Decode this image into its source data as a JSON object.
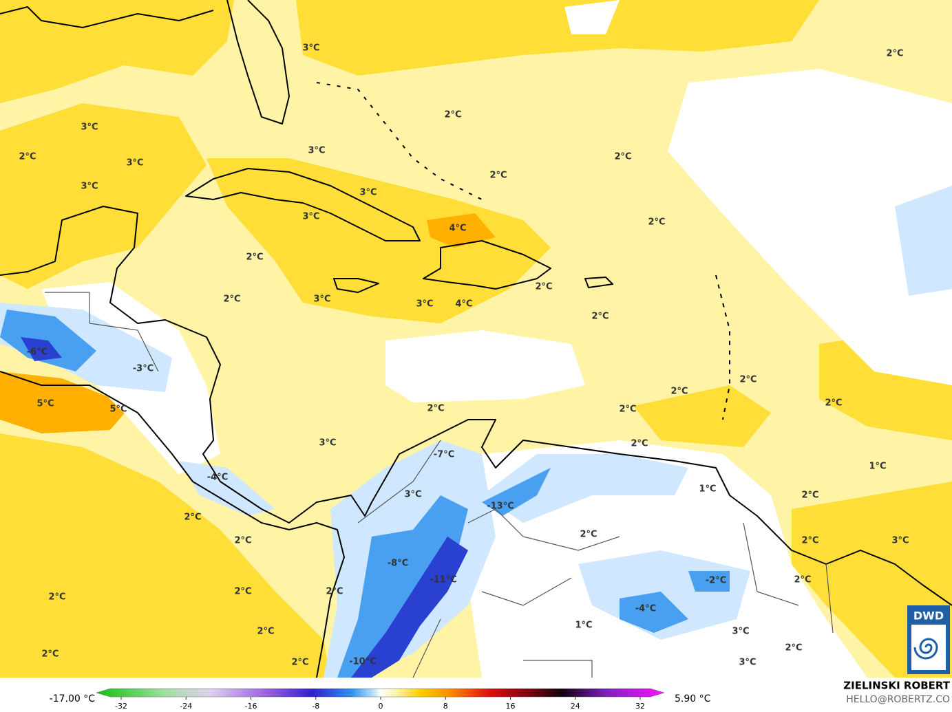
{
  "map": {
    "labels": [
      "3°C",
      "2°C",
      "2°C",
      "3°C",
      "3°C",
      "2°C",
      "3°C",
      "2°C",
      "2°C",
      "3°C",
      "3°C",
      "3°C",
      "4°C",
      "2°C",
      "2°C",
      "2°C",
      "2°C",
      "3°C",
      "3°C",
      "4°C",
      "2°C",
      "-6°C",
      "-3°C",
      "2°C",
      "2°C",
      "5°C",
      "5°C",
      "2°C",
      "2°C",
      "2°C",
      "2°C",
      "3°C",
      "-7°C",
      "1°C",
      "-4°C",
      "1°C",
      "3°C",
      "2°C",
      "-13°C",
      "2°C",
      "2°C",
      "2°C",
      "2°C",
      "3°C",
      "-8°C",
      "-11°C",
      "-2°C",
      "2°C",
      "2°C",
      "2°C",
      "2°C",
      "-4°C",
      "1°C",
      "3°C",
      "2°C",
      "2°C",
      "2°C",
      "-10°C",
      "2°C",
      "3°C"
    ]
  },
  "legend": {
    "min_label": "-17.00 °C",
    "max_label": "5.90 °C",
    "ticks": [
      -32,
      -24,
      -16,
      -8,
      0,
      8,
      16,
      24,
      32
    ]
  },
  "logo": "DWD",
  "credit": {
    "name": "ZIELINSKI ROBERT",
    "email": "HELLO@ROBERTZ.CO"
  }
}
